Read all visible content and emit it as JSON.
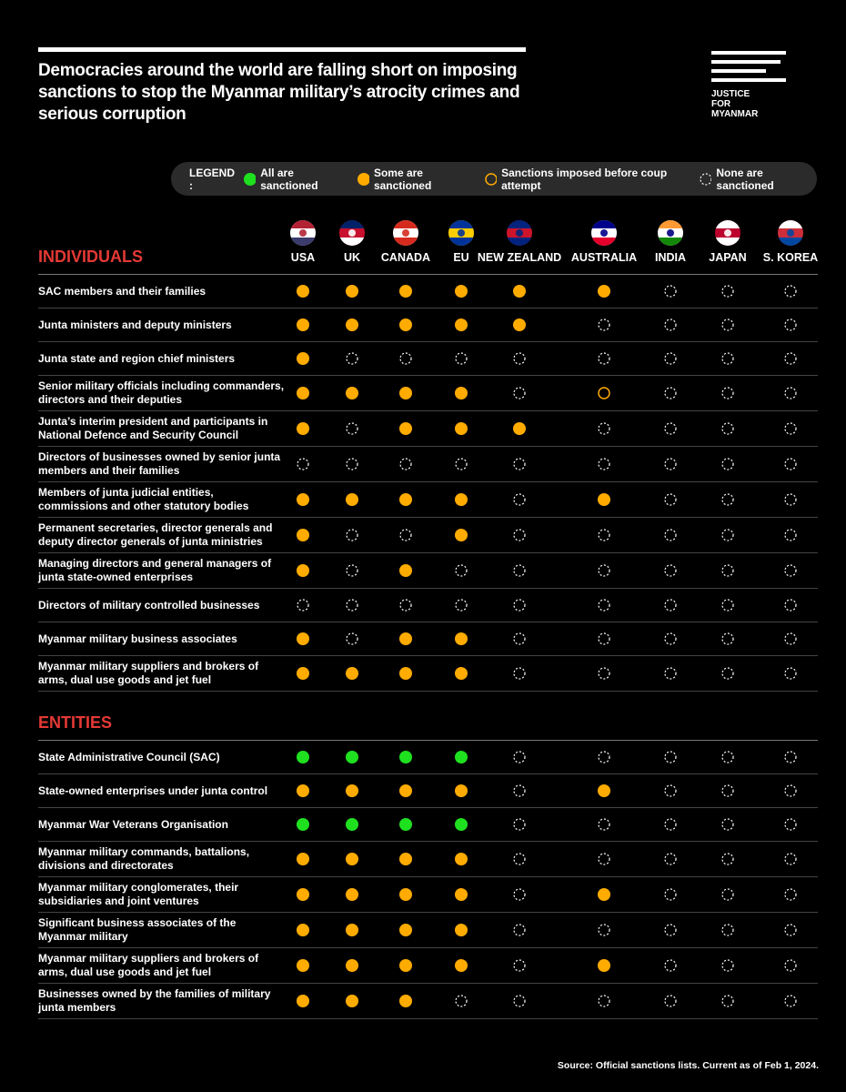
{
  "header": {
    "title": "Democracies around the world are falling short on imposing sanctions to stop the Myanmar military’s atrocity crimes and serious corruption"
  },
  "logo": {
    "lines": [
      "JUSTICE",
      "FOR",
      "MYANMAR"
    ]
  },
  "legend": {
    "title": "LEGEND :",
    "items": [
      "All are sanctioned",
      "Some are sanctioned",
      "Sanctions imposed before coup attempt",
      "None are sanctioned"
    ]
  },
  "countries": [
    "USA",
    "UK",
    "CANADA",
    "EU",
    "NEW ZEALAND",
    "AUSTRALIA",
    "INDIA",
    "JAPAN",
    "S. KOREA"
  ],
  "sections": [
    {
      "title": "INDIVIDUALS",
      "rows": [
        {
          "label": "SAC members and their families",
          "status": [
            1,
            1,
            1,
            1,
            1,
            1,
            3,
            3,
            3
          ]
        },
        {
          "label": "Junta ministers and deputy ministers",
          "status": [
            1,
            1,
            1,
            1,
            1,
            3,
            3,
            3,
            3
          ]
        },
        {
          "label": "Junta state and region chief ministers",
          "status": [
            1,
            3,
            3,
            3,
            3,
            3,
            3,
            3,
            3
          ]
        },
        {
          "label": "Senior military officials including commanders, directors and their deputies",
          "status": [
            1,
            1,
            1,
            1,
            3,
            2,
            3,
            3,
            3
          ]
        },
        {
          "label": "Junta’s interim president and participants in National Defence and Security Council",
          "status": [
            1,
            3,
            1,
            1,
            1,
            3,
            3,
            3,
            3
          ]
        },
        {
          "label": "Directors of businesses owned by senior junta members and their families",
          "status": [
            3,
            3,
            3,
            3,
            3,
            3,
            3,
            3,
            3
          ]
        },
        {
          "label": "Members of junta judicial entities, commissions and other statutory bodies",
          "status": [
            1,
            1,
            1,
            1,
            3,
            1,
            3,
            3,
            3
          ]
        },
        {
          "label": "Permanent secretaries, director generals and deputy director generals of junta ministries",
          "status": [
            1,
            3,
            3,
            1,
            3,
            3,
            3,
            3,
            3
          ]
        },
        {
          "label": "Managing directors and general managers of junta state-owned enterprises",
          "status": [
            1,
            3,
            1,
            3,
            3,
            3,
            3,
            3,
            3
          ]
        },
        {
          "label": "Directors of military controlled businesses",
          "status": [
            3,
            3,
            3,
            3,
            3,
            3,
            3,
            3,
            3
          ]
        },
        {
          "label": "Myanmar military business associates",
          "status": [
            1,
            3,
            1,
            1,
            3,
            3,
            3,
            3,
            3
          ]
        },
        {
          "label": "Myanmar military suppliers and brokers of arms, dual use goods and jet fuel",
          "status": [
            1,
            1,
            1,
            1,
            3,
            3,
            3,
            3,
            3
          ]
        }
      ]
    },
    {
      "title": "ENTITIES",
      "rows": [
        {
          "label": "State Administrative Council (SAC)",
          "status": [
            0,
            0,
            0,
            0,
            3,
            3,
            3,
            3,
            3
          ]
        },
        {
          "label": "State-owned enterprises under junta control",
          "status": [
            1,
            1,
            1,
            1,
            3,
            1,
            3,
            3,
            3
          ]
        },
        {
          "label": "Myanmar War Veterans Organisation",
          "status": [
            0,
            0,
            0,
            0,
            3,
            3,
            3,
            3,
            3
          ]
        },
        {
          "label": "Myanmar military commands, battalions, divisions and directorates",
          "status": [
            1,
            1,
            1,
            1,
            3,
            3,
            3,
            3,
            3
          ]
        },
        {
          "label": "Myanmar military conglomerates, their subsidiaries and joint ventures",
          "status": [
            1,
            1,
            1,
            1,
            3,
            1,
            3,
            3,
            3
          ]
        },
        {
          "label": "Significant business associates of the Myanmar military",
          "status": [
            1,
            1,
            1,
            1,
            3,
            3,
            3,
            3,
            3
          ]
        },
        {
          "label": "Myanmar military suppliers and brokers of arms, dual use goods and jet fuel",
          "status": [
            1,
            1,
            1,
            1,
            3,
            1,
            3,
            3,
            3
          ]
        },
        {
          "label": "Businesses owned by the families of military junta members",
          "status": [
            1,
            1,
            1,
            3,
            3,
            3,
            3,
            3,
            3
          ]
        }
      ]
    }
  ],
  "source": "Source: Official sanctions lists. Current as of Feb 1, 2024."
}
